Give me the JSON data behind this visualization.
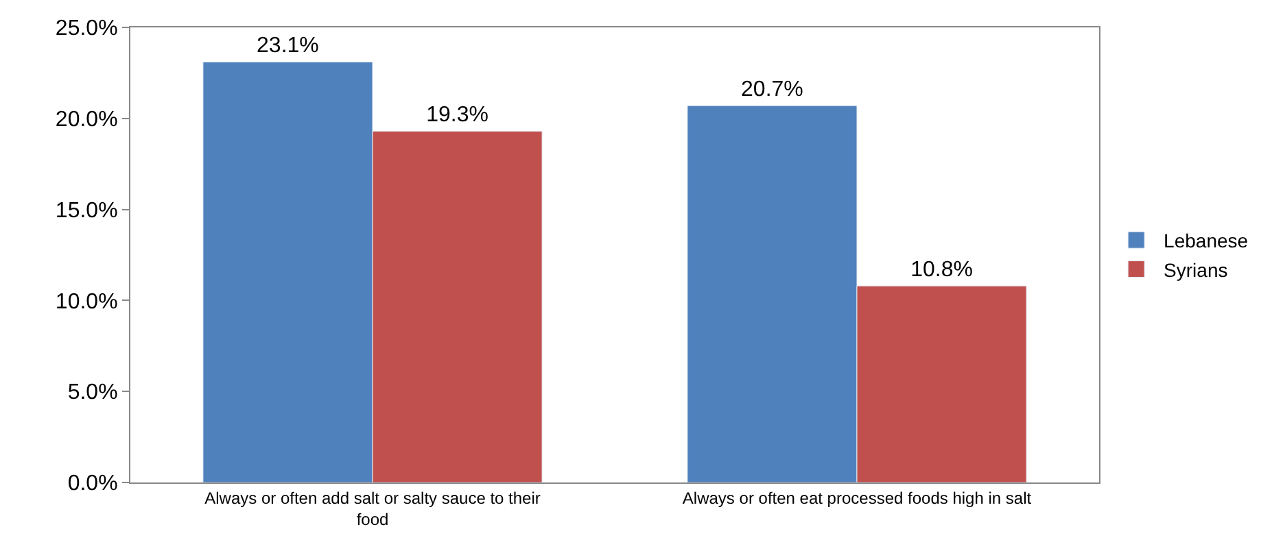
{
  "chart_data": {
    "type": "bar",
    "categories": [
      "Always or often add salt or salty sauce to their food",
      "Always or often eat processed foods high in salt"
    ],
    "series": [
      {
        "name": "Lebanese",
        "color": "#4f81bd",
        "values": [
          23.1,
          20.7
        ],
        "value_labels": [
          "23.1%",
          "20.7%"
        ]
      },
      {
        "name": "Syrians",
        "color": "#c0504d",
        "values": [
          19.3,
          10.8
        ],
        "value_labels": [
          "19.3%",
          "10.8%"
        ]
      }
    ],
    "ylim": [
      0,
      25
    ],
    "yticks": [
      {
        "value": 0,
        "label": "0.0%"
      },
      {
        "value": 5,
        "label": "5.0%"
      },
      {
        "value": 10,
        "label": "10.0%"
      },
      {
        "value": 15,
        "label": "15.0%"
      },
      {
        "value": 20,
        "label": "20.0%"
      },
      {
        "value": 25,
        "label": "25.0%"
      }
    ],
    "grid": false,
    "legend": "right"
  }
}
